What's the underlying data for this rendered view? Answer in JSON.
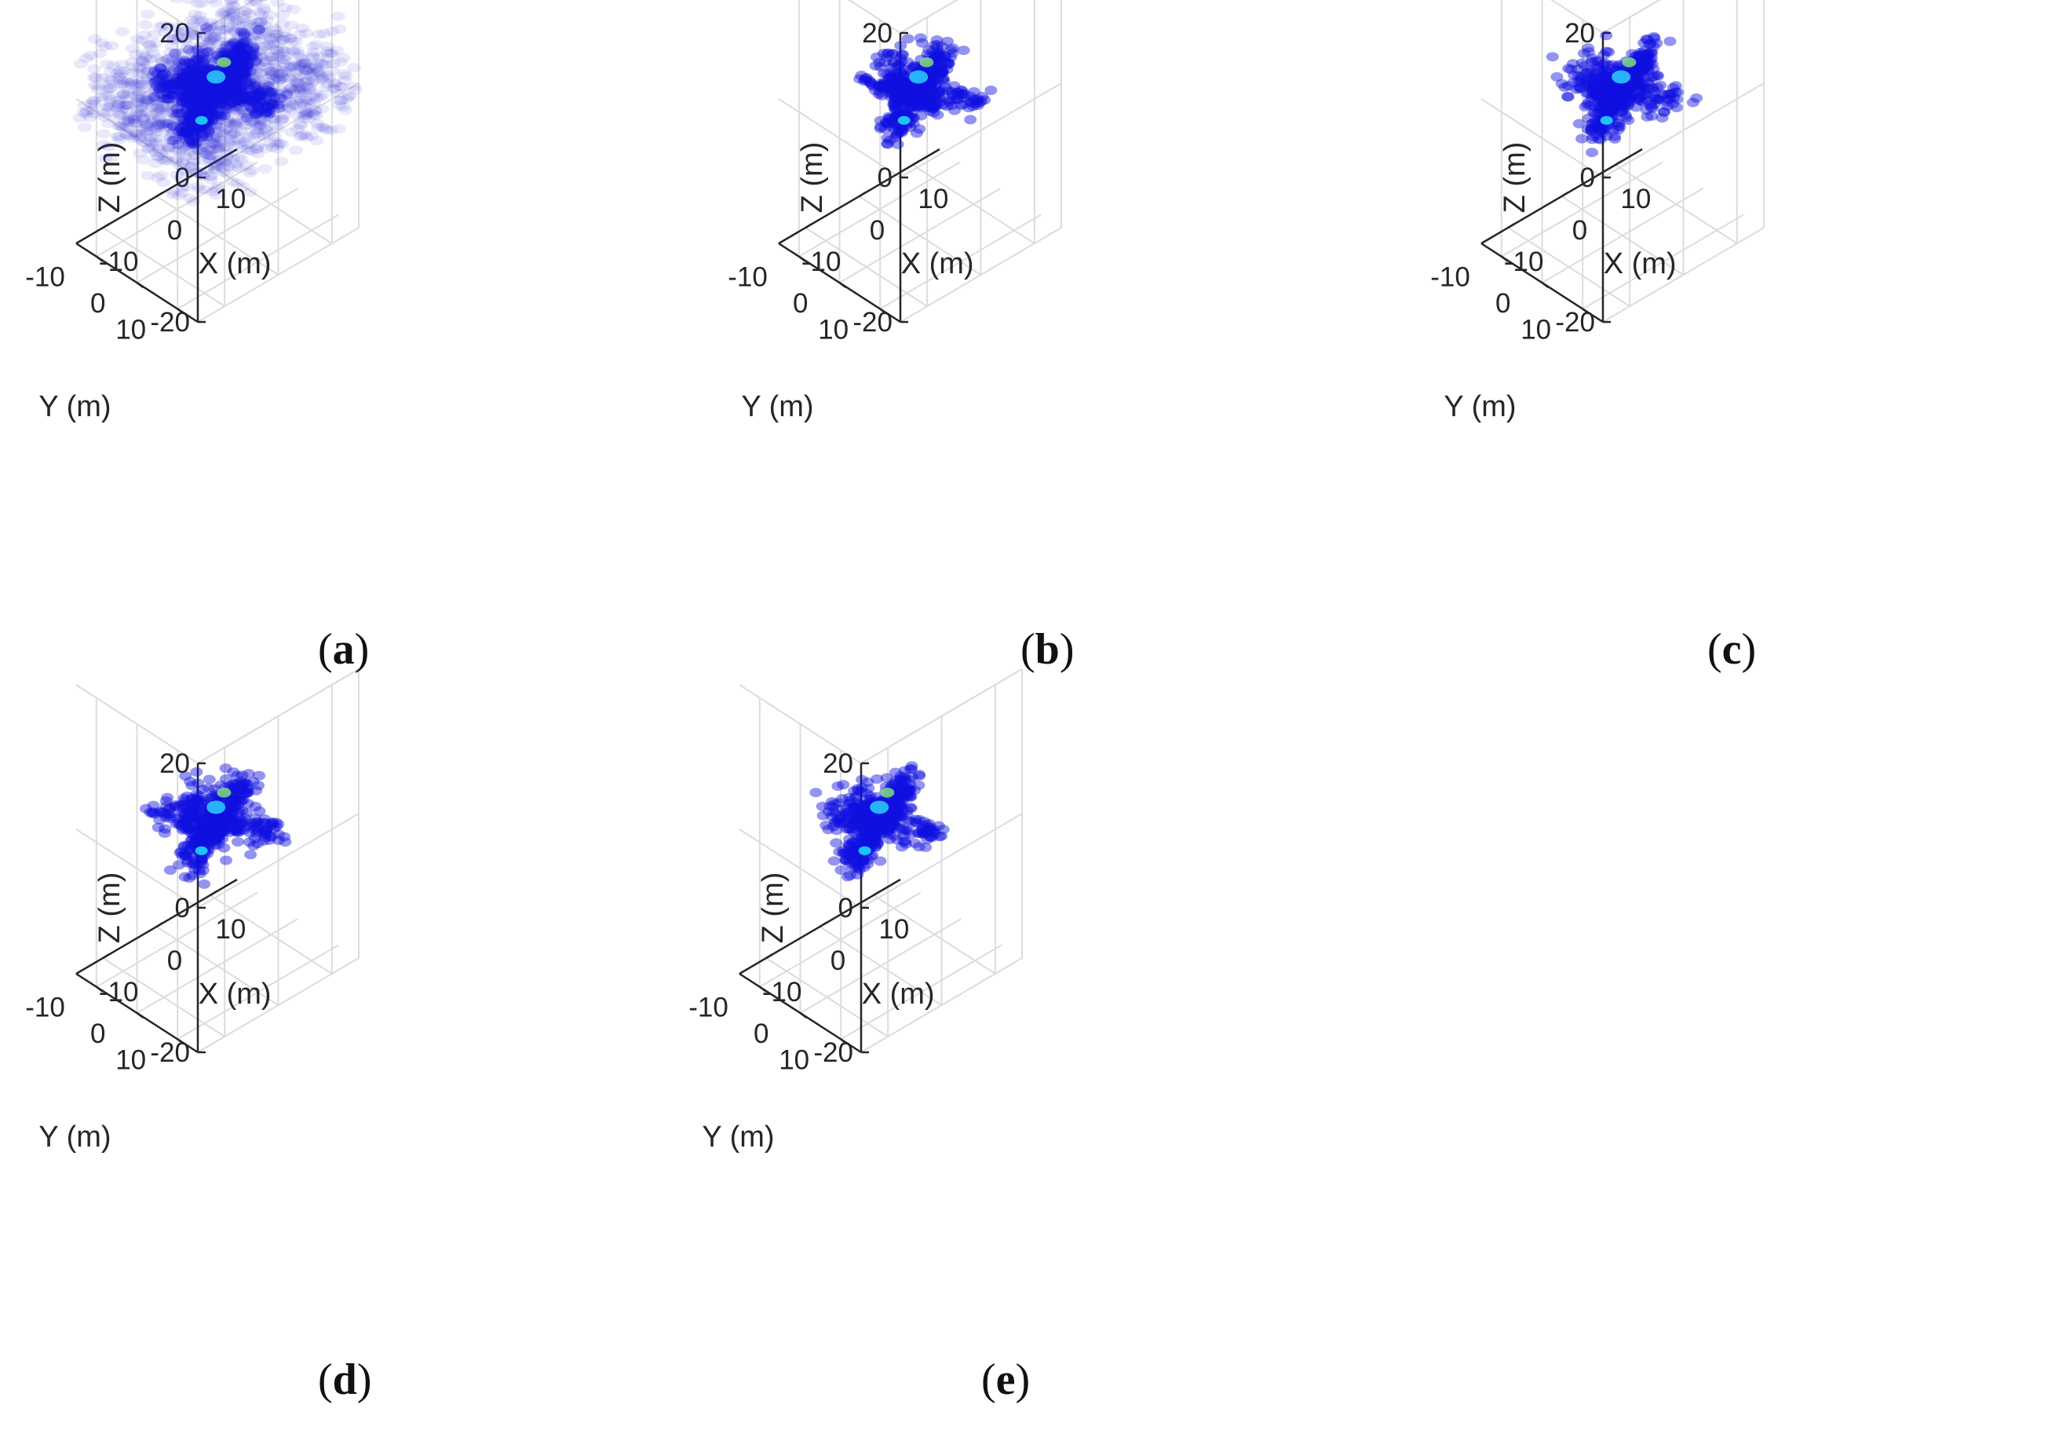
{
  "chart_data": [
    {
      "panel_label": "a",
      "type": "scatter3d",
      "xlabel": "X (m)",
      "ylabel": "Y (m)",
      "zlabel": "Z (m)",
      "xlim": [
        -15,
        15
      ],
      "ylim": [
        -15,
        15
      ],
      "zlim": [
        -20,
        20
      ],
      "xticks": [
        "-10",
        "0",
        "10"
      ],
      "yticks": [
        "10",
        "0",
        "-10"
      ],
      "zticks": [
        "20",
        "0",
        "-20"
      ],
      "grid": true,
      "colormap": "jet",
      "colormap_low": "#1010e0",
      "background_noise": true
    },
    {
      "panel_label": "b",
      "type": "scatter3d",
      "xlabel": "X (m)",
      "ylabel": "Y (m)",
      "zlabel": "Z (m)",
      "xlim": [
        -15,
        15
      ],
      "ylim": [
        -15,
        15
      ],
      "zlim": [
        -20,
        20
      ],
      "xticks": [
        "-10",
        "0",
        "10"
      ],
      "yticks": [
        "10",
        "0",
        "-10"
      ],
      "zticks": [
        "20",
        "0",
        "-20"
      ],
      "grid": true,
      "colormap": "jet",
      "colormap_low": "#1010e0",
      "background_noise": false
    },
    {
      "panel_label": "c",
      "type": "scatter3d",
      "xlabel": "X (m)",
      "ylabel": "Y (m)",
      "zlabel": "Z (m)",
      "xlim": [
        -15,
        15
      ],
      "ylim": [
        -15,
        15
      ],
      "zlim": [
        -20,
        20
      ],
      "xticks": [
        "-10",
        "0",
        "10"
      ],
      "yticks": [
        "10",
        "0",
        "-10"
      ],
      "zticks": [
        "20",
        "0",
        "-20"
      ],
      "grid": true,
      "colormap": "jet",
      "colormap_low": "#1010e0",
      "background_noise": false
    },
    {
      "panel_label": "d",
      "type": "scatter3d",
      "xlabel": "X (m)",
      "ylabel": "Y (m)",
      "zlabel": "Z (m)",
      "xlim": [
        -15,
        15
      ],
      "ylim": [
        -15,
        15
      ],
      "zlim": [
        -20,
        20
      ],
      "xticks": [
        "-10",
        "0",
        "10"
      ],
      "yticks": [
        "10",
        "0",
        "-10"
      ],
      "zticks": [
        "20",
        "0",
        "-20"
      ],
      "grid": true,
      "colormap": "jet",
      "colormap_low": "#1010e0",
      "background_noise": false
    },
    {
      "panel_label": "e",
      "type": "scatter3d",
      "xlabel": "X (m)",
      "ylabel": "Y (m)",
      "zlabel": "Z (m)",
      "xlim": [
        -15,
        15
      ],
      "ylim": [
        -15,
        15
      ],
      "zlim": [
        -20,
        20
      ],
      "xticks": [
        "-10",
        "0",
        "10"
      ],
      "yticks": [
        "10",
        "0",
        "-10"
      ],
      "zticks": [
        "20",
        "0",
        "-20"
      ],
      "grid": true,
      "colormap": "jet",
      "colormap_low": "#1010e0",
      "background_noise": false
    }
  ],
  "captions": [
    "(a)",
    "(b)",
    "(c)",
    "(d)",
    "(e)"
  ]
}
